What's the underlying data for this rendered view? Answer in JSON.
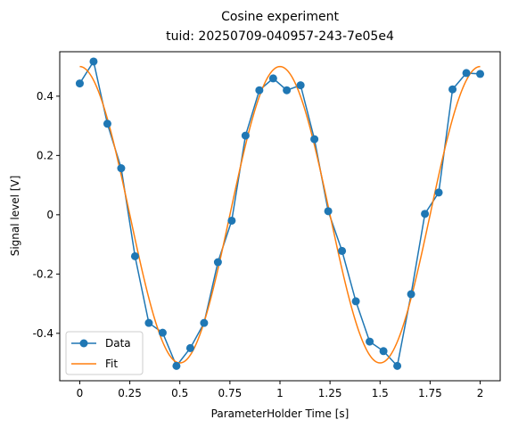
{
  "chart_data": {
    "type": "line",
    "title": "Cosine experiment",
    "subtitle": "tuid: 20250709-040957-243-7e05e4",
    "xlabel": "ParameterHolder Time [s]",
    "ylabel": "Signal level [V]",
    "xlim": [
      -0.1,
      2.1
    ],
    "ylim": [
      -0.56,
      0.55
    ],
    "xticks": [
      0,
      0.25,
      0.5,
      0.75,
      1,
      1.25,
      1.5,
      1.75,
      2
    ],
    "xtick_labels": [
      "0",
      "0.25",
      "0.5",
      "0.75",
      "1",
      "1.25",
      "1.5",
      "1.75",
      "2"
    ],
    "yticks": [
      -0.4,
      -0.2,
      0,
      0.2,
      0.4
    ],
    "ytick_labels": [
      "-0.4",
      "-0.2",
      "0",
      "0.2",
      "0.4"
    ],
    "grid": false,
    "legend": {
      "position": "lower-left"
    },
    "series": [
      {
        "name": "Data",
        "color": "#1f77b4",
        "marker": "circle",
        "x": [
          0,
          0.069,
          0.138,
          0.207,
          0.276,
          0.345,
          0.414,
          0.483,
          0.552,
          0.621,
          0.69,
          0.759,
          0.828,
          0.897,
          0.966,
          1.034,
          1.103,
          1.172,
          1.241,
          1.31,
          1.379,
          1.448,
          1.517,
          1.586,
          1.655,
          1.724,
          1.793,
          1.862,
          1.931,
          2.0
        ],
        "y": [
          0.443,
          0.517,
          0.307,
          0.157,
          -0.14,
          -0.365,
          -0.398,
          -0.51,
          -0.45,
          -0.365,
          -0.16,
          -0.02,
          0.267,
          0.42,
          0.46,
          0.42,
          0.437,
          0.255,
          0.012,
          -0.122,
          -0.292,
          -0.428,
          -0.46,
          -0.51,
          -0.268,
          0.003,
          0.075,
          0.423,
          0.478,
          0.475
        ]
      },
      {
        "name": "Fit",
        "color": "#ff7f0e",
        "function": "cosine",
        "amplitude": 0.5,
        "frequency": 1.0,
        "phase": 0.0,
        "offset": 0.0
      }
    ]
  }
}
